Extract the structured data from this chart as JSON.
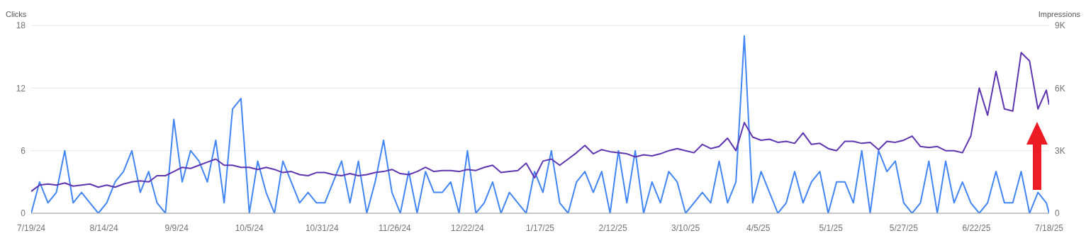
{
  "chart_data": {
    "type": "line",
    "ylabel": "Clicks",
    "y2label": "Impressions",
    "x": [
      "2024-07-19",
      "2024-07-22",
      "2024-07-25",
      "2024-07-28",
      "2024-07-31",
      "2024-08-03",
      "2024-08-06",
      "2024-08-09",
      "2024-08-12",
      "2024-08-15",
      "2024-08-18",
      "2024-08-21",
      "2024-08-24",
      "2024-08-27",
      "2024-08-30",
      "2024-09-02",
      "2024-09-05",
      "2024-09-08",
      "2024-09-11",
      "2024-09-14",
      "2024-09-17",
      "2024-09-20",
      "2024-09-23",
      "2024-09-26",
      "2024-09-29",
      "2024-10-02",
      "2024-10-05",
      "2024-10-08",
      "2024-10-11",
      "2024-10-14",
      "2024-10-17",
      "2024-10-20",
      "2024-10-23",
      "2024-10-26",
      "2024-10-29",
      "2024-11-01",
      "2024-11-04",
      "2024-11-07",
      "2024-11-10",
      "2024-11-13",
      "2024-11-16",
      "2024-11-19",
      "2024-11-22",
      "2024-11-25",
      "2024-11-28",
      "2024-12-01",
      "2024-12-04",
      "2024-12-07",
      "2024-12-10",
      "2024-12-13",
      "2024-12-16",
      "2024-12-19",
      "2024-12-22",
      "2024-12-25",
      "2024-12-28",
      "2024-12-31",
      "2025-01-03",
      "2025-01-06",
      "2025-01-09",
      "2025-01-12",
      "2025-01-15",
      "2025-01-18",
      "2025-01-21",
      "2025-01-24",
      "2025-01-27",
      "2025-01-30",
      "2025-02-02",
      "2025-02-05",
      "2025-02-08",
      "2025-02-11",
      "2025-02-14",
      "2025-02-17",
      "2025-02-20",
      "2025-02-23",
      "2025-02-26",
      "2025-03-01",
      "2025-03-04",
      "2025-03-07",
      "2025-03-10",
      "2025-03-13",
      "2025-03-16",
      "2025-03-19",
      "2025-03-22",
      "2025-03-25",
      "2025-03-28",
      "2025-03-31",
      "2025-04-03",
      "2025-04-06",
      "2025-04-09",
      "2025-04-12",
      "2025-04-15",
      "2025-04-18",
      "2025-04-21",
      "2025-04-24",
      "2025-04-27",
      "2025-04-30",
      "2025-05-03",
      "2025-05-06",
      "2025-05-09",
      "2025-05-12",
      "2025-05-15",
      "2025-05-18",
      "2025-05-21",
      "2025-05-24",
      "2025-05-27",
      "2025-05-30",
      "2025-06-02",
      "2025-06-05",
      "2025-06-08",
      "2025-06-11",
      "2025-06-14",
      "2025-06-17",
      "2025-06-20",
      "2025-06-23",
      "2025-06-26",
      "2025-06-29",
      "2025-07-02",
      "2025-07-05",
      "2025-07-08",
      "2025-07-11",
      "2025-07-14",
      "2025-07-17",
      "2025-07-18"
    ],
    "series": [
      {
        "color": "#4285f4",
        "values": [
          0,
          3,
          1,
          2,
          6,
          1,
          2,
          1,
          0,
          1,
          3,
          4,
          6,
          2,
          4,
          1,
          0,
          9,
          3,
          6,
          5,
          3,
          7,
          1,
          10,
          11,
          0,
          5,
          2,
          0,
          5,
          3,
          1,
          2,
          1,
          1,
          3,
          5,
          1,
          5,
          0,
          3,
          7,
          2,
          0,
          4,
          0,
          4,
          2,
          2,
          3,
          0,
          6,
          0,
          1,
          3,
          0,
          2,
          1,
          0,
          4,
          2,
          6,
          1,
          0,
          3,
          4,
          2,
          4,
          0,
          6,
          1,
          6,
          0,
          3,
          1,
          4,
          3,
          0,
          1,
          2,
          1,
          5,
          1,
          3,
          17,
          1,
          4,
          2,
          0,
          1,
          4,
          1,
          3,
          4,
          0,
          3,
          3,
          1,
          6,
          0,
          6,
          4,
          5,
          1,
          0,
          1,
          5,
          0,
          5,
          1,
          3,
          1,
          0,
          1,
          4,
          1,
          1,
          4,
          0,
          2,
          1,
          0
        ]
      },
      {
        "color": "#5e35b1",
        "axis": "y2",
        "values": [
          1050,
          1350,
          1400,
          1350,
          1450,
          1300,
          1350,
          1400,
          1250,
          1350,
          1250,
          1400,
          1500,
          1550,
          1500,
          1800,
          1800,
          2000,
          2200,
          2150,
          2300,
          2450,
          2600,
          2300,
          2300,
          2200,
          2200,
          2100,
          2200,
          2100,
          1950,
          2000,
          1850,
          1800,
          1950,
          1950,
          1850,
          1800,
          1900,
          1800,
          1850,
          1950,
          2000,
          2100,
          1900,
          1850,
          2000,
          2200,
          2000,
          2050,
          2050,
          2000,
          2100,
          2050,
          2200,
          2300,
          1950,
          2000,
          2050,
          2400,
          1700,
          2500,
          2600,
          2300,
          2600,
          2900,
          3250,
          2850,
          3050,
          2950,
          2900,
          2850,
          2700,
          2800,
          2750,
          2850,
          3000,
          3100,
          3000,
          2900,
          3300,
          3100,
          3200,
          3600,
          3000,
          4350,
          3650,
          3500,
          3550,
          3400,
          3450,
          3350,
          3850,
          3300,
          3350,
          3100,
          3000,
          3450,
          3450,
          3350,
          3400,
          3050,
          3450,
          3400,
          3500,
          3700,
          3200,
          3150,
          3200,
          3000,
          3000,
          2900,
          3700,
          6000,
          4700,
          6800,
          5000,
          4900,
          7700,
          7300,
          5000,
          5900,
          5200
        ]
      }
    ],
    "xlim": [
      "2024-07-19",
      "2025-07-18"
    ],
    "xticks": [
      {
        "value": "2024-07-19",
        "label": "7/19/24"
      },
      {
        "value": "2024-08-14",
        "label": "8/14/24"
      },
      {
        "value": "2024-09-09",
        "label": "9/9/24"
      },
      {
        "value": "2024-10-05",
        "label": "10/5/24"
      },
      {
        "value": "2024-10-31",
        "label": "10/31/24"
      },
      {
        "value": "2024-11-26",
        "label": "11/26/24"
      },
      {
        "value": "2024-12-22",
        "label": "12/22/24"
      },
      {
        "value": "2025-01-17",
        "label": "1/17/25"
      },
      {
        "value": "2025-02-12",
        "label": "2/12/25"
      },
      {
        "value": "2025-03-10",
        "label": "3/10/25"
      },
      {
        "value": "2025-04-05",
        "label": "4/5/25"
      },
      {
        "value": "2025-05-01",
        "label": "5/1/25"
      },
      {
        "value": "2025-05-27",
        "label": "5/27/25"
      },
      {
        "value": "2025-06-22",
        "label": "6/22/25"
      },
      {
        "value": "2025-07-18",
        "label": "7/18/25"
      }
    ],
    "ylim": [
      0,
      18
    ],
    "yticks": [
      0,
      6,
      12,
      18
    ],
    "y2lim": [
      0,
      9000
    ],
    "y2ticks": [
      {
        "value": 0,
        "label": "0"
      },
      {
        "value": 3000,
        "label": "3K"
      },
      {
        "value": 6000,
        "label": "6K"
      },
      {
        "value": 9000,
        "label": "9K"
      }
    ],
    "grid": "y",
    "marker": "none",
    "line_style": "solid"
  }
}
